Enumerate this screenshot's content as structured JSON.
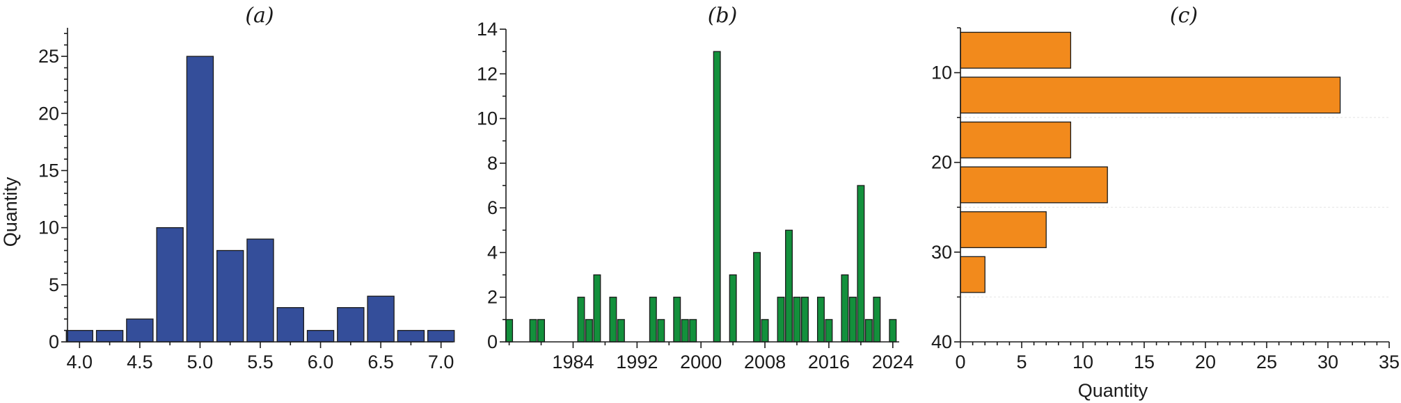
{
  "chart_data": [
    {
      "type": "bar",
      "title": "(a)",
      "xlabel": "",
      "ylabel": "Quantity",
      "color": "#344e9a",
      "bin_centers": [
        4.0,
        4.25,
        4.5,
        4.75,
        5.0,
        5.25,
        5.5,
        5.75,
        6.0,
        6.25,
        6.5,
        6.75,
        7.0
      ],
      "values": [
        1,
        1,
        2,
        10,
        25,
        8,
        9,
        3,
        1,
        3,
        4,
        1,
        1
      ],
      "xlim": [
        3.9,
        7.1
      ],
      "ylim": [
        0,
        27.5
      ],
      "xticks": [
        "4.0",
        "4.5",
        "5.0",
        "5.5",
        "6.0",
        "6.5",
        "7.0"
      ],
      "yticks": [
        "0",
        "5",
        "10",
        "15",
        "20",
        "25"
      ]
    },
    {
      "type": "bar",
      "title": "(b)",
      "xlabel": "",
      "ylabel": "",
      "color": "#13903c",
      "years": [
        1976,
        1979,
        1980,
        1985,
        1986,
        1987,
        1989,
        1990,
        1994,
        1995,
        1997,
        1998,
        1999,
        2002,
        2004,
        2007,
        2008,
        2010,
        2011,
        2012,
        2013,
        2015,
        2016,
        2018,
        2019,
        2020,
        2021,
        2022,
        2024
      ],
      "values": [
        1,
        1,
        1,
        2,
        1,
        3,
        2,
        1,
        2,
        1,
        2,
        1,
        1,
        13,
        3,
        4,
        1,
        2,
        5,
        2,
        2,
        2,
        1,
        3,
        2,
        7,
        1,
        2,
        1
      ],
      "xlim": [
        1975.6,
        2024.8
      ],
      "ylim": [
        0,
        14
      ],
      "xticks": [
        "1984",
        "1992",
        "2000",
        "2008",
        "2016",
        "2024"
      ],
      "yticks": [
        "0",
        "2",
        "4",
        "6",
        "8",
        "10",
        "12",
        "14"
      ]
    },
    {
      "type": "bar",
      "orientation": "horizontal",
      "title": "(c)",
      "xlabel": "Quantity",
      "ylabel": "",
      "color": "#f28a1c",
      "bin_centers": [
        7.5,
        12.5,
        17.5,
        22.5,
        27.5,
        32.5
      ],
      "values": [
        9,
        31,
        9,
        12,
        7,
        2
      ],
      "xlim": [
        0,
        35
      ],
      "ylim": [
        40,
        5
      ],
      "xticks": [
        "0",
        "5",
        "10",
        "15",
        "20",
        "25",
        "30",
        "35"
      ],
      "yticks": [
        "10",
        "20",
        "30",
        "40"
      ]
    }
  ]
}
